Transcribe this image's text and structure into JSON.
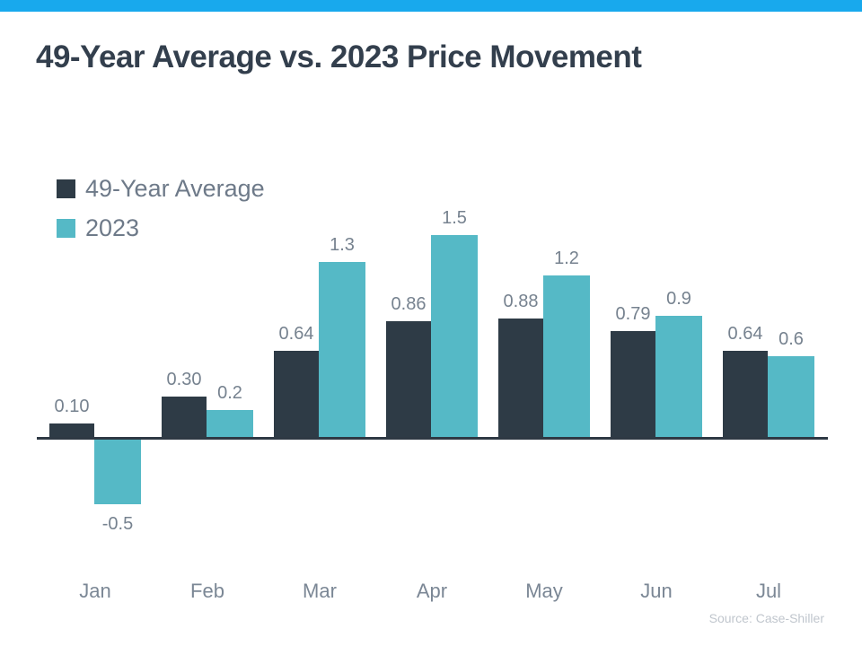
{
  "page": {
    "accent_bar_color": "#18a9ed"
  },
  "chart_data": {
    "type": "bar",
    "title": "49-Year Average vs. 2023 Price Movement",
    "categories": [
      "Jan",
      "Feb",
      "Mar",
      "Apr",
      "May",
      "Jun",
      "Jul"
    ],
    "series": [
      {
        "name": "49-Year Average",
        "color": "#2e3b46",
        "values": [
          0.1,
          0.3,
          0.64,
          0.86,
          0.88,
          0.79,
          0.64
        ],
        "labels": [
          "0.10",
          "0.30",
          "0.64",
          "0.86",
          "0.88",
          "0.79",
          "0.64"
        ]
      },
      {
        "name": "2023",
        "color": "#55b9c6",
        "values": [
          -0.5,
          0.2,
          1.3,
          1.5,
          1.2,
          0.9,
          0.6
        ],
        "labels": [
          "-0.5",
          "0.2",
          "1.3",
          "1.5",
          "1.2",
          "0.9",
          "0.6"
        ]
      }
    ],
    "ylim": [
      -0.75,
      1.75
    ],
    "grid": false,
    "y_axis_visible": false,
    "legend_position": "top-left",
    "source": "Source: Case-Shiller"
  }
}
